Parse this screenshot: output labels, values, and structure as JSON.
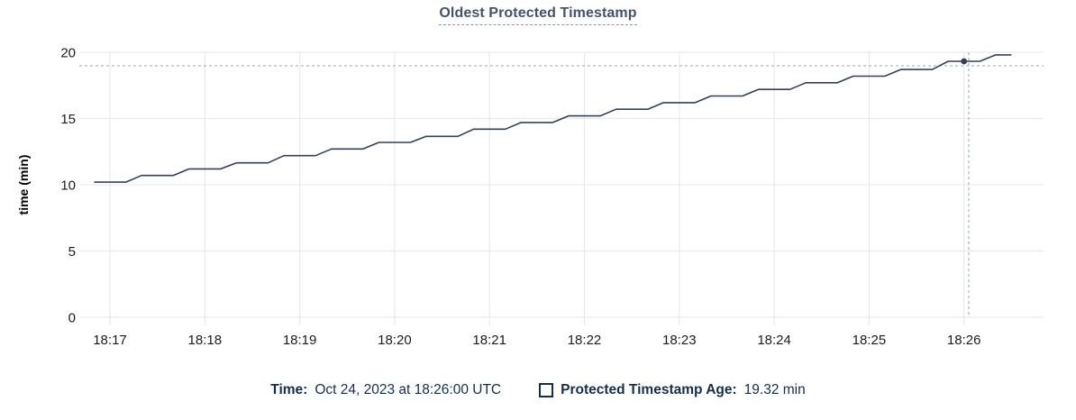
{
  "title": "Oldest Protected Timestamp",
  "colors": {
    "line": "#32415e",
    "marker": "#323f5a",
    "grid": "#e9e9e9",
    "crosshair": "#a6bac6",
    "title_text": "#43526e",
    "title_underline": "#8797ae",
    "tick_text": "#1c1c1c",
    "axis_label_text": "#000000",
    "legend_text": "#132f50"
  },
  "legend": {
    "time_label": "Time:",
    "time_value": "Oct 24, 2023 at 18:26:00 UTC",
    "series_label": "Protected Timestamp Age:",
    "series_value": "19.32 min"
  },
  "chart_data": {
    "type": "line",
    "title": "Oldest Protected Timestamp",
    "xlabel": "",
    "ylabel": "time (min)",
    "ylim": [
      0,
      20
    ],
    "y_ticks": [
      0,
      5,
      10,
      15,
      20
    ],
    "x_ticks": [
      "18:17",
      "18:18",
      "18:19",
      "18:20",
      "18:21",
      "18:22",
      "18:23",
      "18:24",
      "18:25",
      "18:26"
    ],
    "grid": "on",
    "legend_position": "bottom",
    "series": [
      {
        "name": "Protected Timestamp Age",
        "unit": "min",
        "points": [
          [
            "18:16:50",
            10.2
          ],
          [
            "18:17:10",
            10.2
          ],
          [
            "18:17:20",
            10.7
          ],
          [
            "18:17:40",
            10.7
          ],
          [
            "18:17:50",
            11.2
          ],
          [
            "18:18:10",
            11.2
          ],
          [
            "18:18:20",
            11.65
          ],
          [
            "18:18:40",
            11.65
          ],
          [
            "18:18:50",
            12.2
          ],
          [
            "18:19:10",
            12.2
          ],
          [
            "18:19:20",
            12.7
          ],
          [
            "18:19:40",
            12.7
          ],
          [
            "18:19:50",
            13.2
          ],
          [
            "18:20:10",
            13.2
          ],
          [
            "18:20:20",
            13.65
          ],
          [
            "18:20:40",
            13.65
          ],
          [
            "18:20:50",
            14.2
          ],
          [
            "18:21:10",
            14.2
          ],
          [
            "18:21:20",
            14.7
          ],
          [
            "18:21:40",
            14.7
          ],
          [
            "18:21:50",
            15.2
          ],
          [
            "18:22:10",
            15.2
          ],
          [
            "18:22:20",
            15.7
          ],
          [
            "18:22:40",
            15.7
          ],
          [
            "18:22:50",
            16.2
          ],
          [
            "18:23:10",
            16.2
          ],
          [
            "18:23:20",
            16.7
          ],
          [
            "18:23:40",
            16.7
          ],
          [
            "18:23:50",
            17.2
          ],
          [
            "18:24:10",
            17.2
          ],
          [
            "18:24:20",
            17.7
          ],
          [
            "18:24:40",
            17.7
          ],
          [
            "18:24:50",
            18.2
          ],
          [
            "18:25:10",
            18.2
          ],
          [
            "18:25:20",
            18.7
          ],
          [
            "18:25:40",
            18.7
          ],
          [
            "18:25:50",
            19.32
          ],
          [
            "18:26:10",
            19.32
          ],
          [
            "18:26:20",
            19.8
          ],
          [
            "18:26:30",
            19.8
          ]
        ]
      }
    ],
    "crosshair": {
      "hover_time": "18:26:03",
      "hover_value": 18.98,
      "point_time": "18:26:00",
      "point_value": 19.32
    }
  }
}
